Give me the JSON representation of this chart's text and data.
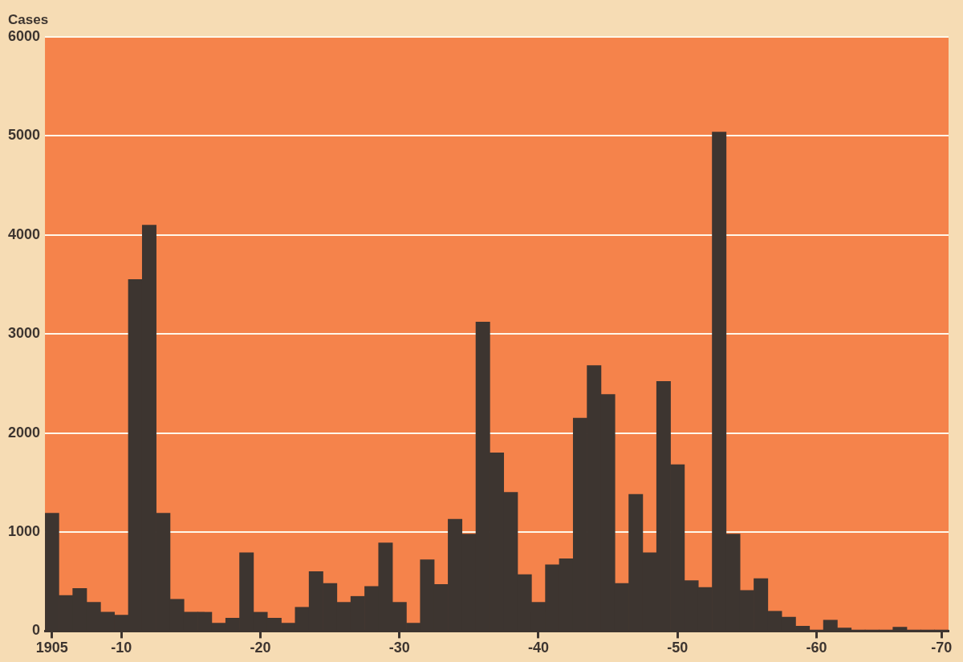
{
  "chart_data": {
    "type": "bar",
    "ylabel": "Cases",
    "categories": [
      "1905",
      null,
      null,
      null,
      null,
      "-10",
      null,
      null,
      null,
      null,
      null,
      null,
      null,
      null,
      null,
      "-20",
      null,
      null,
      null,
      null,
      null,
      null,
      null,
      null,
      null,
      "-30",
      null,
      null,
      null,
      null,
      null,
      null,
      null,
      null,
      null,
      "-40",
      null,
      null,
      null,
      null,
      null,
      null,
      null,
      null,
      null,
      "-50",
      null,
      null,
      null,
      null,
      null,
      null,
      null,
      null,
      null,
      "-60",
      null,
      null,
      null,
      null,
      null,
      null,
      null,
      null,
      "-70"
    ],
    "values": [
      1190,
      360,
      430,
      290,
      190,
      160,
      3550,
      4100,
      1190,
      320,
      190,
      190,
      80,
      130,
      790,
      190,
      130,
      80,
      240,
      600,
      480,
      290,
      350,
      450,
      890,
      290,
      80,
      720,
      470,
      1130,
      980,
      3120,
      1800,
      1400,
      570,
      290,
      670,
      730,
      2150,
      2680,
      2390,
      480,
      1380,
      790,
      2520,
      1680,
      510,
      440,
      5040,
      980,
      410,
      530,
      200,
      140,
      50,
      10,
      110,
      30,
      10,
      10,
      10,
      40,
      10,
      10,
      10
    ],
    "color": "#3d3530",
    "ylim": [
      0,
      6000
    ],
    "yticks": [
      0,
      1000,
      2000,
      3000,
      4000,
      5000,
      6000
    ],
    "grid": "y"
  }
}
